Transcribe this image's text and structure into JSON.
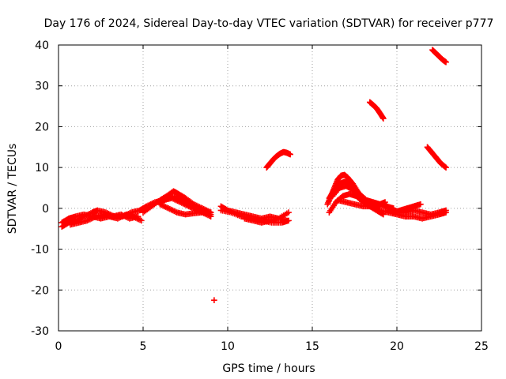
{
  "chart_data": {
    "type": "scatter",
    "title": "Day 176 of 2024, Sidereal Day-to-day VTEC variation (SDTVAR) for receiver p777",
    "xlabel": "GPS time / hours",
    "ylabel": "SDTVAR / TECUs",
    "xlim": [
      0,
      25
    ],
    "ylim": [
      -30,
      40
    ],
    "x_ticks": [
      0,
      5,
      10,
      15,
      20,
      25
    ],
    "y_ticks": [
      -30,
      -20,
      -10,
      0,
      10,
      20,
      30,
      40
    ],
    "grid": true,
    "marker": "plus",
    "series_color": "#ff0000",
    "series": [
      {
        "name": "track-a",
        "x": [
          0.2,
          0.6,
          1.0,
          1.5,
          2.0,
          2.3,
          2.8,
          3.3,
          3.8,
          4.3,
          4.8,
          5.2,
          5.7,
          6.2,
          6.7,
          7.2,
          7.7,
          8.2,
          8.6,
          9.0
        ],
        "y": [
          -4.5,
          -3.5,
          -3.0,
          -2.0,
          -1.0,
          -0.5,
          -1.0,
          -2.0,
          -2.0,
          -1.0,
          -0.5,
          0.5,
          1.5,
          2.0,
          2.5,
          1.5,
          0.5,
          -0.5,
          -1.0,
          -1.5
        ]
      },
      {
        "name": "track-b",
        "x": [
          0.2,
          0.6,
          1.0,
          1.5,
          2.0,
          2.5,
          3.0,
          3.5,
          4.0,
          4.4,
          4.9
        ],
        "y": [
          -3.5,
          -2.5,
          -2.0,
          -1.5,
          -2.0,
          -2.5,
          -2.0,
          -2.5,
          -1.5,
          -2.0,
          -3.0
        ]
      },
      {
        "name": "track-c",
        "x": [
          0.7,
          1.2,
          1.7,
          2.2,
          2.7,
          3.2,
          3.7,
          4.2,
          4.7
        ],
        "y": [
          -4.0,
          -3.5,
          -3.0,
          -2.0,
          -1.5,
          -2.0,
          -1.5,
          -2.5,
          -2.0
        ]
      },
      {
        "name": "track-d",
        "x": [
          5.0,
          5.5,
          6.0,
          6.4,
          6.8,
          7.1,
          7.5,
          8.0,
          8.5,
          9.0
        ],
        "y": [
          -1.0,
          0.5,
          2.0,
          3.0,
          4.2,
          3.5,
          2.5,
          1.0,
          0.0,
          -1.0
        ]
      },
      {
        "name": "track-e",
        "x": [
          6.0,
          6.5,
          7.0,
          7.5,
          8.0,
          8.5,
          9.0
        ],
        "y": [
          1.5,
          2.5,
          3.0,
          1.5,
          0.5,
          -0.5,
          -1.0
        ]
      },
      {
        "name": "track-f",
        "x": [
          6.0,
          6.5,
          7.0,
          7.5,
          8.0,
          8.5,
          9.0
        ],
        "y": [
          1.0,
          0.0,
          -1.0,
          -1.5,
          -1.2,
          -1.0,
          -2.0
        ]
      },
      {
        "name": "track-g",
        "x": [
          9.6,
          10.0,
          10.5,
          11.0,
          11.5,
          12.0,
          12.5,
          13.0,
          13.5
        ],
        "y": [
          0.5,
          -0.5,
          -1.0,
          -1.5,
          -2.0,
          -2.5,
          -2.0,
          -2.5,
          -3.0
        ]
      },
      {
        "name": "track-h",
        "x": [
          9.6,
          10.2,
          10.8,
          11.4,
          12.0,
          12.6,
          13.2,
          13.6
        ],
        "y": [
          -0.5,
          -1.0,
          -2.0,
          -2.5,
          -3.0,
          -3.5,
          -3.5,
          -3.0
        ]
      },
      {
        "name": "track-i",
        "x": [
          11.0,
          11.5,
          12.0,
          12.5,
          13.0,
          13.6
        ],
        "y": [
          -2.5,
          -3.0,
          -3.5,
          -3.0,
          -2.5,
          -1.0
        ]
      },
      {
        "name": "track-j",
        "x": [
          12.3,
          12.5,
          12.7,
          12.9,
          13.1,
          13.3,
          13.5,
          13.7
        ],
        "y": [
          10.0,
          11.0,
          12.0,
          12.8,
          13.4,
          13.8,
          13.6,
          13.2
        ]
      },
      {
        "name": "outlier",
        "x": [
          9.2
        ],
        "y": [
          -22.5
        ]
      },
      {
        "name": "track-k",
        "x": [
          15.9,
          16.1,
          16.3,
          16.5,
          16.7,
          16.9,
          17.1,
          17.4,
          17.7,
          18.0,
          18.3
        ],
        "y": [
          1.0,
          3.0,
          5.0,
          7.0,
          8.0,
          8.2,
          7.5,
          6.0,
          4.0,
          2.0,
          1.0
        ]
      },
      {
        "name": "track-l",
        "x": [
          16.0,
          16.3,
          16.6,
          16.9,
          17.2,
          17.5,
          17.8,
          18.2,
          18.6,
          19.0
        ],
        "y": [
          2.5,
          4.5,
          6.0,
          6.5,
          6.0,
          4.5,
          3.0,
          2.0,
          1.0,
          0.5
        ]
      },
      {
        "name": "track-m",
        "x": [
          16.0,
          16.4,
          16.8,
          17.2,
          17.6,
          18.0,
          18.4,
          18.8,
          19.2
        ],
        "y": [
          -1.0,
          1.5,
          3.0,
          3.5,
          3.0,
          1.5,
          0.5,
          -0.5,
          -1.5
        ]
      },
      {
        "name": "track-n",
        "x": [
          16.2,
          16.6,
          17.0,
          17.4,
          17.8,
          18.2,
          18.6,
          19.0,
          19.4,
          19.8
        ],
        "y": [
          3.0,
          5.0,
          5.5,
          4.5,
          3.5,
          2.0,
          1.5,
          1.0,
          0.5,
          0.0
        ]
      },
      {
        "name": "track-o",
        "x": [
          16.5,
          17.0,
          17.5,
          18.0,
          18.5,
          19.0,
          19.3
        ],
        "y": [
          2.0,
          1.5,
          1.0,
          0.5,
          0.5,
          1.0,
          1.5
        ]
      },
      {
        "name": "track-p",
        "x": [
          19.0,
          19.5,
          20.0,
          20.5,
          21.0,
          21.5,
          22.0,
          22.5,
          22.9
        ],
        "y": [
          -0.5,
          -1.0,
          -1.5,
          -2.0,
          -2.0,
          -2.5,
          -2.0,
          -1.5,
          -1.0
        ]
      },
      {
        "name": "track-q",
        "x": [
          19.5,
          20.0,
          20.5,
          21.0,
          21.5,
          22.0,
          22.5,
          22.9
        ],
        "y": [
          -0.5,
          -1.0,
          -1.0,
          -0.5,
          -1.0,
          -1.5,
          -1.0,
          -0.5
        ]
      },
      {
        "name": "track-r",
        "x": [
          19.8,
          20.2,
          20.6,
          21.0,
          21.4
        ],
        "y": [
          -1.0,
          -0.5,
          0.0,
          0.5,
          1.0
        ]
      },
      {
        "name": "track-s",
        "x": [
          18.4,
          18.6,
          18.8,
          19.0,
          19.2
        ],
        "y": [
          26.0,
          25.3,
          24.5,
          23.3,
          22.0
        ]
      },
      {
        "name": "track-t",
        "x": [
          21.8,
          22.0,
          22.2,
          22.4,
          22.6,
          22.9
        ],
        "y": [
          15.0,
          14.0,
          13.0,
          12.0,
          11.0,
          10.0
        ]
      },
      {
        "name": "track-u",
        "x": [
          22.1,
          22.3,
          22.5,
          22.7,
          22.9
        ],
        "y": [
          38.8,
          38.0,
          37.2,
          36.4,
          35.8
        ]
      }
    ]
  }
}
